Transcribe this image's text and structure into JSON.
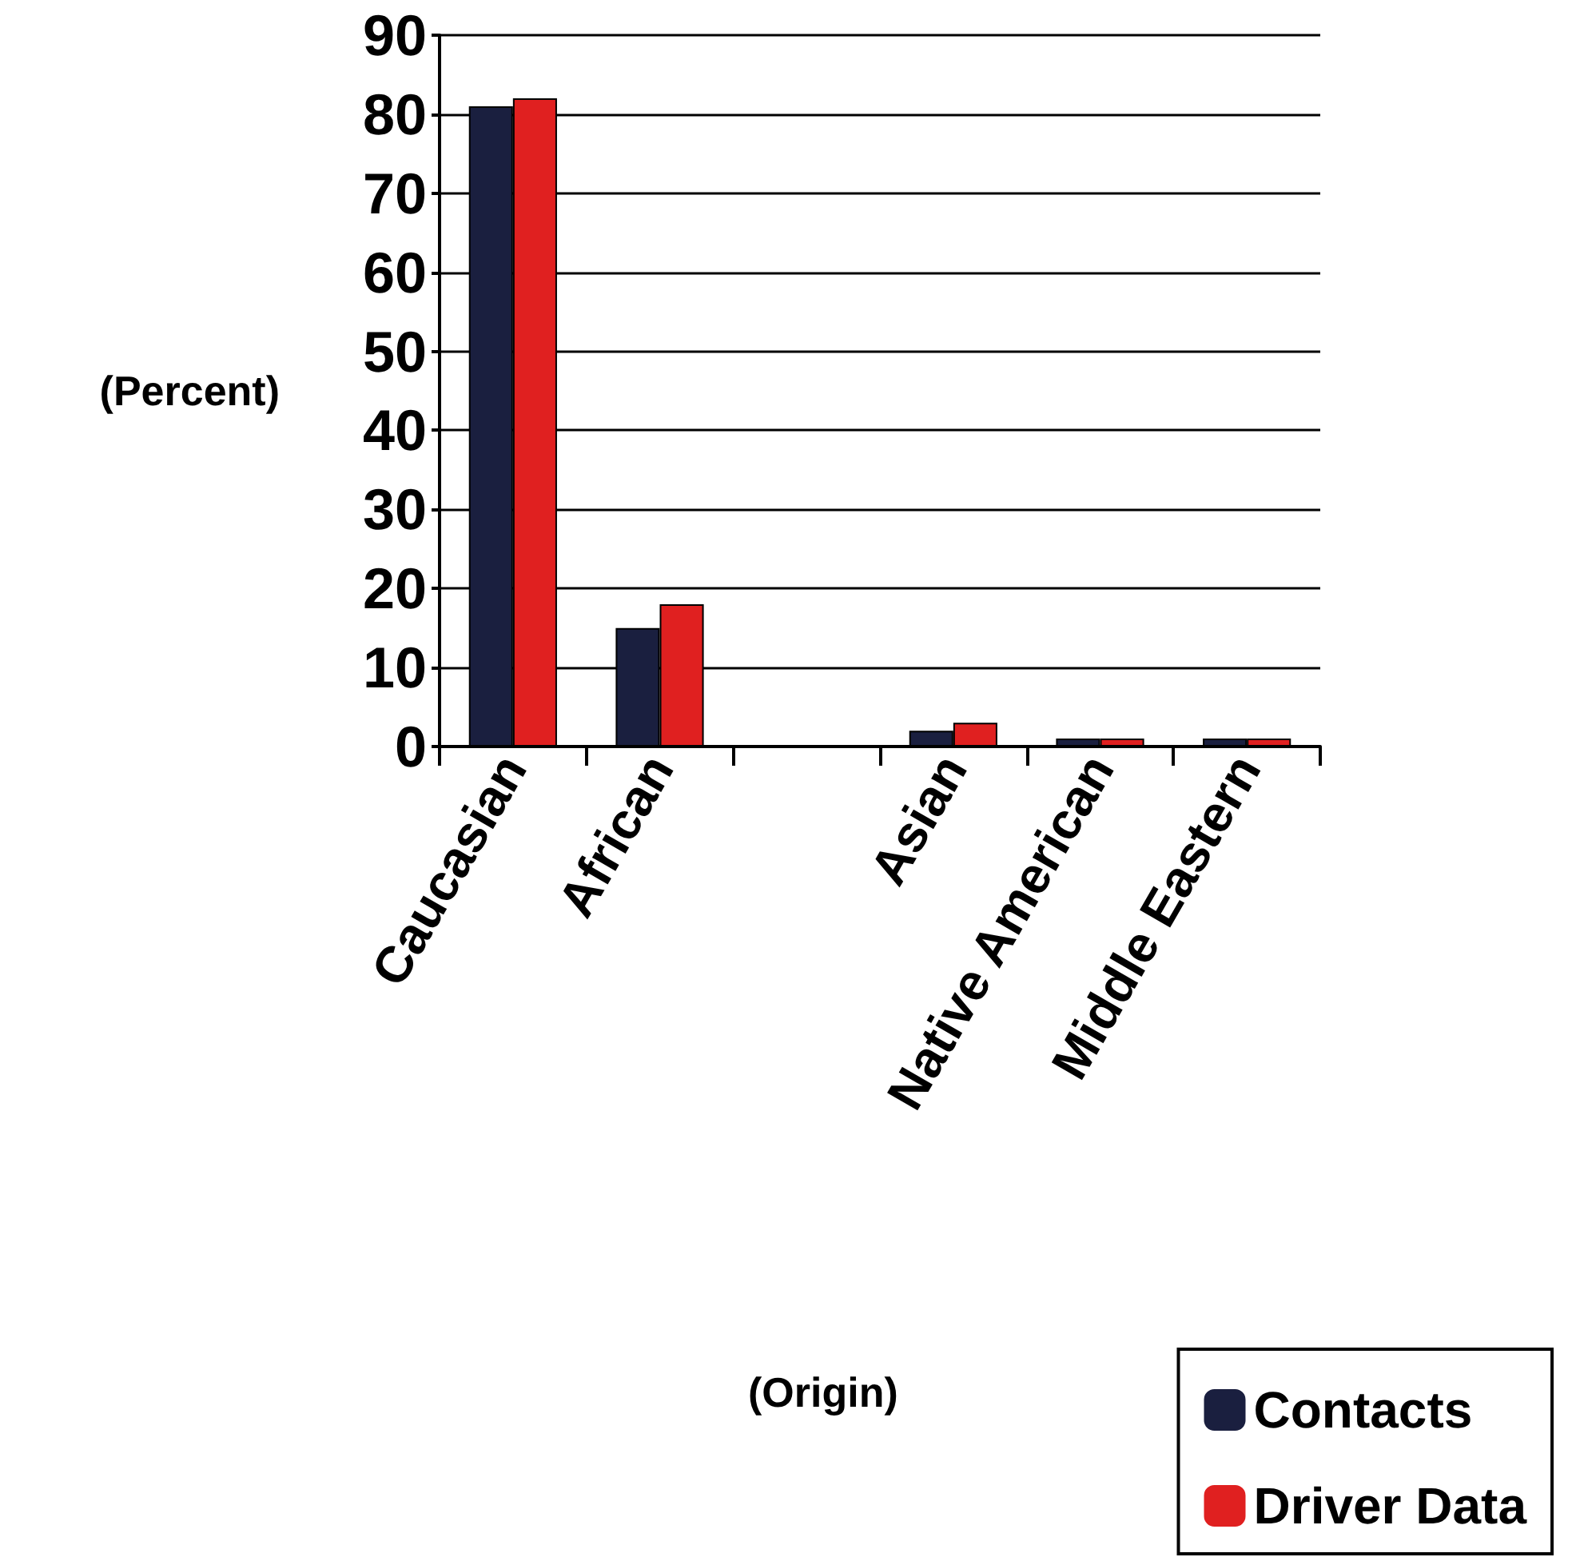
{
  "chart_data": {
    "type": "bar",
    "annotations": [
      "(Origin)"
    ],
    "ylabel": "(Percent)",
    "categories": [
      "Caucasian",
      "African",
      null,
      "Asian",
      "Native American",
      "Middle Eastern"
    ],
    "series": [
      {
        "name": "Contacts",
        "color": "#1a1f3f",
        "values": [
          81,
          15,
          null,
          2,
          1,
          1
        ]
      },
      {
        "name": "Driver Data",
        "color": "#e02020",
        "values": [
          82,
          18,
          null,
          3,
          1,
          1
        ]
      }
    ],
    "ylim": [
      0,
      90
    ],
    "yticks": [
      0,
      10,
      20,
      30,
      40,
      50,
      60,
      70,
      80,
      90
    ],
    "grid": "y",
    "legend": "bottom right"
  }
}
